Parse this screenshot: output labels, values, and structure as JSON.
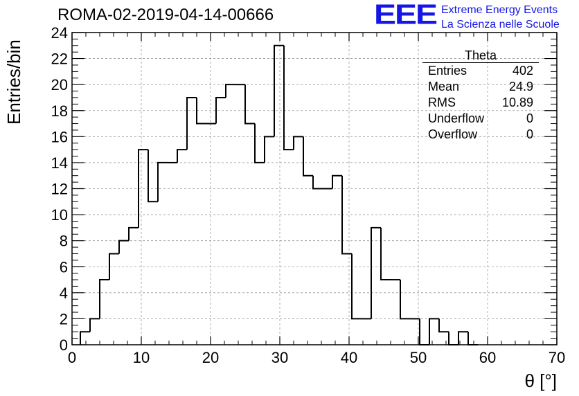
{
  "header": {
    "title": "ROMA-02-2019-04-14-00666",
    "logo_text": "EEE",
    "logo_line1": "Extreme Energy Events",
    "logo_line2": "La Scienza nelle Scuole"
  },
  "stats_box": {
    "title": "Theta",
    "rows": [
      {
        "label": "Entries",
        "value": "402"
      },
      {
        "label": "Mean",
        "value": "24.9"
      },
      {
        "label": "RMS",
        "value": "10.89"
      },
      {
        "label": "Underflow",
        "value": "0"
      },
      {
        "label": "Overflow",
        "value": "0"
      }
    ]
  },
  "chart_data": {
    "type": "bar",
    "title": "ROMA-02-2019-04-14-00666",
    "xlabel": "θ [°]",
    "ylabel": "Entries/bin",
    "xlim": [
      0,
      70
    ],
    "ylim": [
      0,
      24
    ],
    "grid": true,
    "bin_width": 1.4,
    "bin_start": 1.2,
    "values": [
      1,
      2,
      5,
      7,
      8,
      9,
      15,
      11,
      14,
      14,
      15,
      19,
      17,
      17,
      19,
      20,
      20,
      17,
      14,
      16,
      23,
      15,
      16,
      13,
      12,
      12,
      13,
      7,
      2,
      2,
      9,
      5,
      5,
      2,
      2,
      0,
      2,
      1,
      0,
      1,
      0
    ],
    "x_ticks": [
      "0",
      "10",
      "20",
      "30",
      "40",
      "50",
      "60",
      "70"
    ],
    "y_ticks": [
      "0",
      "2",
      "4",
      "6",
      "8",
      "10",
      "12",
      "14",
      "16",
      "18",
      "20",
      "22",
      "24"
    ],
    "colors": {
      "line": "#000000",
      "grid": "#9a9a9a",
      "logo": "#1515e6"
    }
  }
}
